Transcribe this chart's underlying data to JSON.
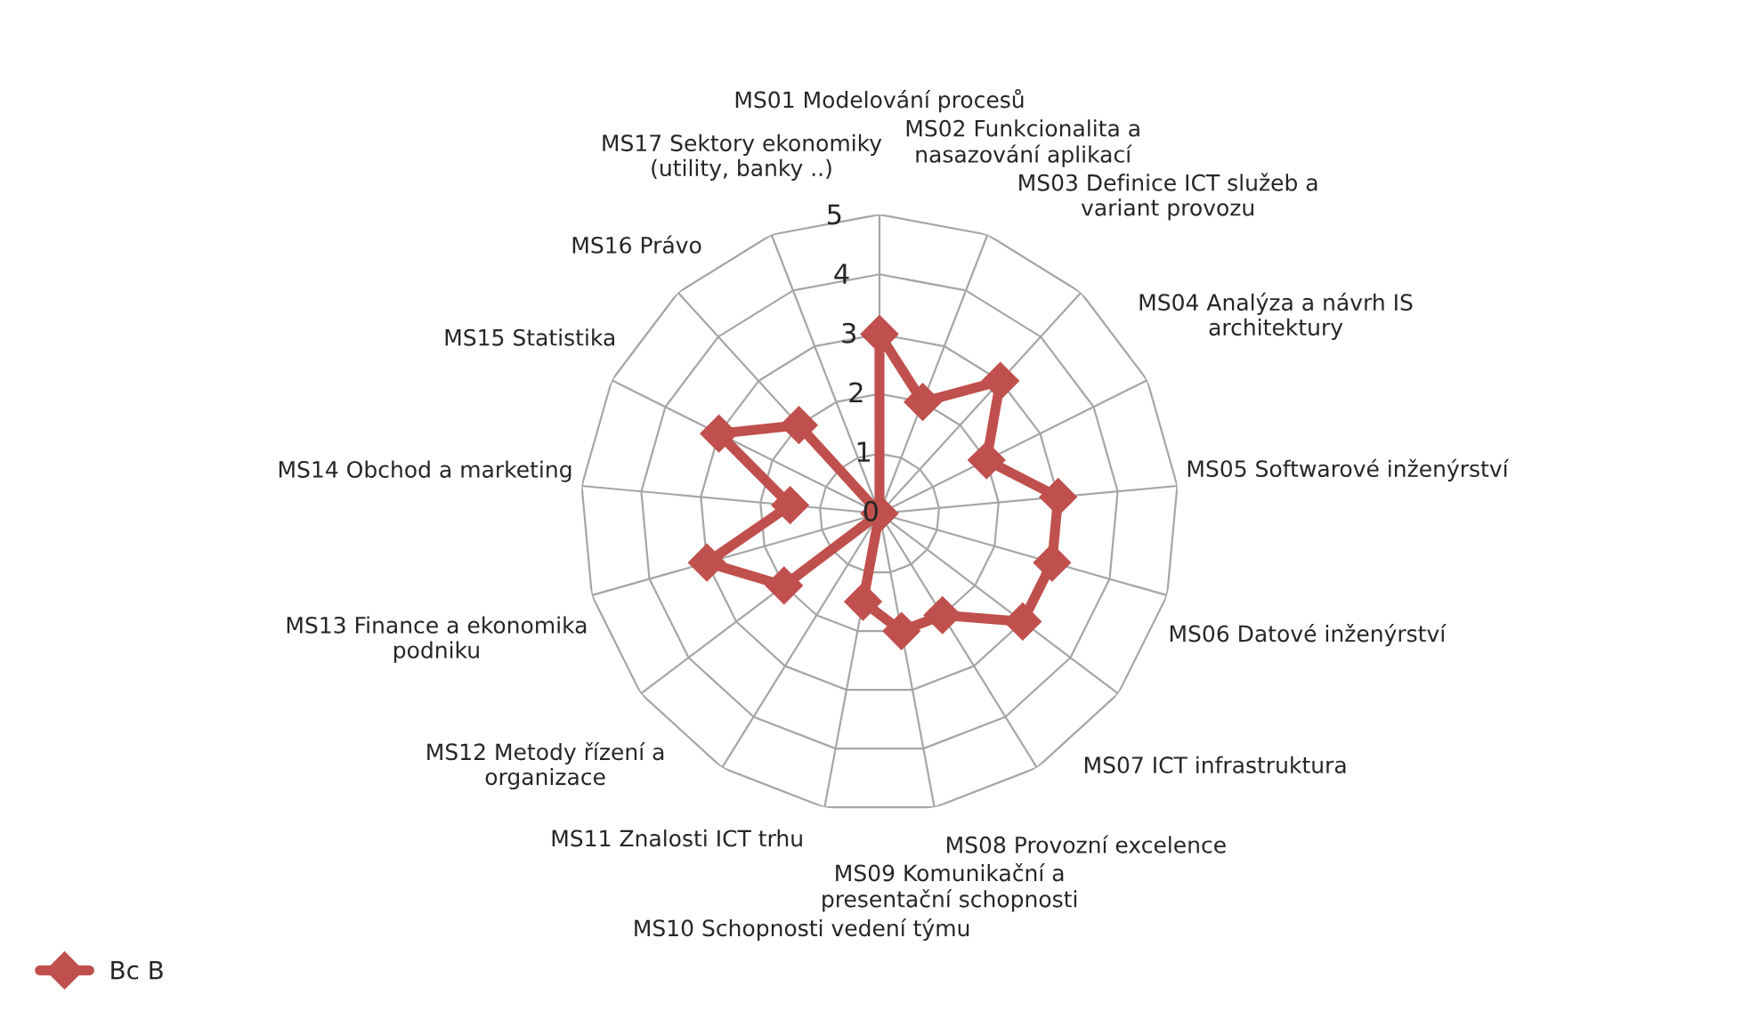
{
  "chart_data": {
    "type": "radar",
    "categories": [
      "MS01 Modelování procesů",
      "MS02 Funkcionalita a\nnasazování aplikací",
      "MS03 Definice ICT služeb a\nvariant provozu",
      "MS04 Analýza a návrh IS\narchitektury",
      "MS05 Softwarové inženýrství",
      "MS06 Datové inženýrství",
      "MS07 ICT infrastruktura",
      "MS08 Provozní excelence",
      "MS09 Komunikační a\npresentační schopnosti",
      "MS10 Schopnosti vedení týmu",
      "MS11 Znalosti ICT trhu",
      "MS12 Metody řízení a\norganizace",
      "MS13 Finance a ekonomika\npodniku",
      "MS14 Obchod a marketing",
      "MS15 Statistika",
      "MS16 Právo",
      "MS17 Sektory ekonomiky\n(utility, banky ..)"
    ],
    "series": [
      {
        "name": "Bc B",
        "color": "#c0504d",
        "values": [
          3,
          2,
          3,
          2,
          3,
          3,
          3,
          2,
          2,
          1.5,
          0,
          2,
          3,
          1.5,
          3,
          2,
          0
        ]
      }
    ],
    "ylim": [
      0,
      5
    ],
    "yticks": [
      0,
      1,
      2,
      3,
      4,
      5
    ],
    "grid": true,
    "legend": "bottom left",
    "marker": "diamond",
    "line_style": "solid"
  }
}
